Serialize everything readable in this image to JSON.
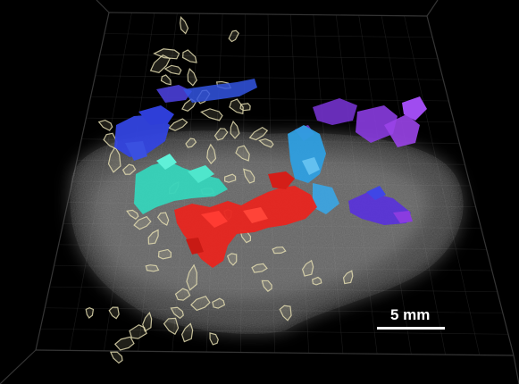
{
  "scale_bar": {
    "label": "5 mm"
  },
  "colors": {
    "background": "#000000",
    "grid": "#3a3a3a",
    "tissue": "#8a8a8a",
    "outline_structures": "#d9d2a6",
    "red": "#e8251f",
    "teal": "#3fe0c5",
    "light_blue": "#3aa6e6",
    "blue": "#3344e0",
    "purple": "#8a3ce0",
    "violet": "#6a2ad6"
  }
}
